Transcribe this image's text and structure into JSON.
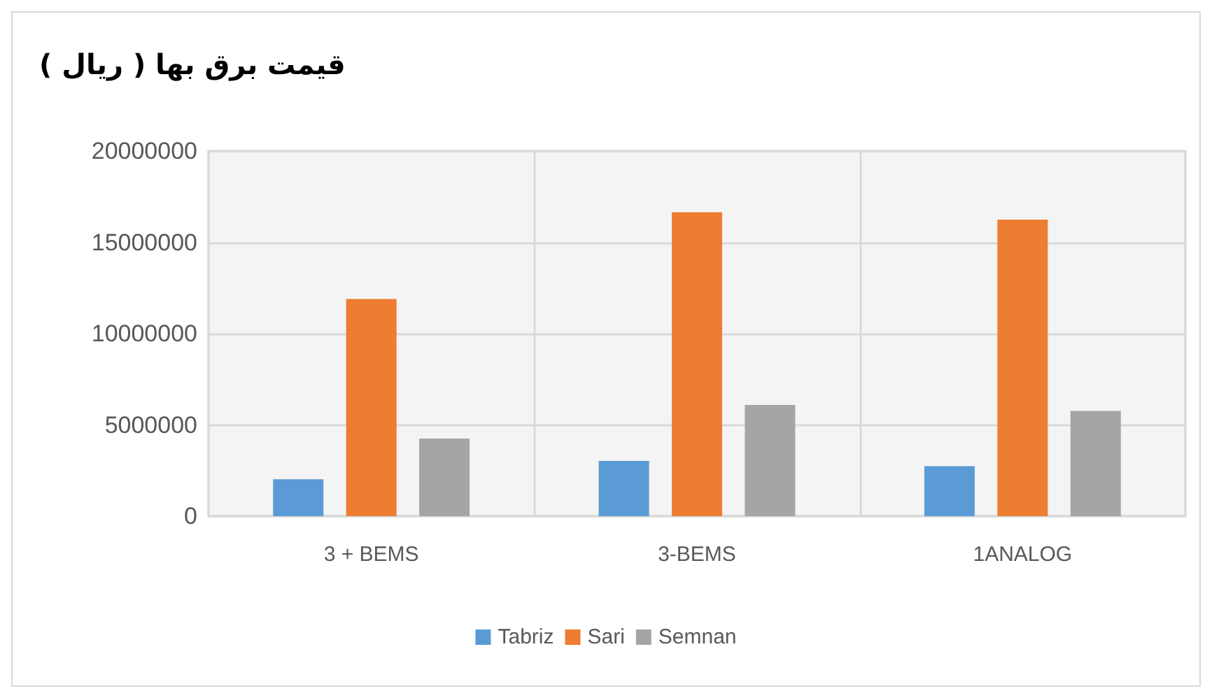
{
  "chart_data": {
    "type": "bar",
    "title": "قیمت برق بها ( ریال )",
    "categories": [
      "3 + BEMS",
      "3-BEMS",
      "1ANALOG"
    ],
    "series": [
      {
        "name": "Tabriz",
        "color": "#5b9bd5",
        "values": [
          2020000,
          3030000,
          2740000
        ]
      },
      {
        "name": "Sari",
        "color": "#ed7d31",
        "values": [
          11900000,
          16650000,
          16250000
        ]
      },
      {
        "name": "Semnan",
        "color": "#a5a5a5",
        "values": [
          4250000,
          6090000,
          5770000
        ]
      }
    ],
    "ylim": [
      0,
      20000000
    ],
    "yticks": [
      0,
      5000000,
      10000000,
      15000000,
      20000000
    ],
    "grid": true,
    "legend": "bottom"
  }
}
